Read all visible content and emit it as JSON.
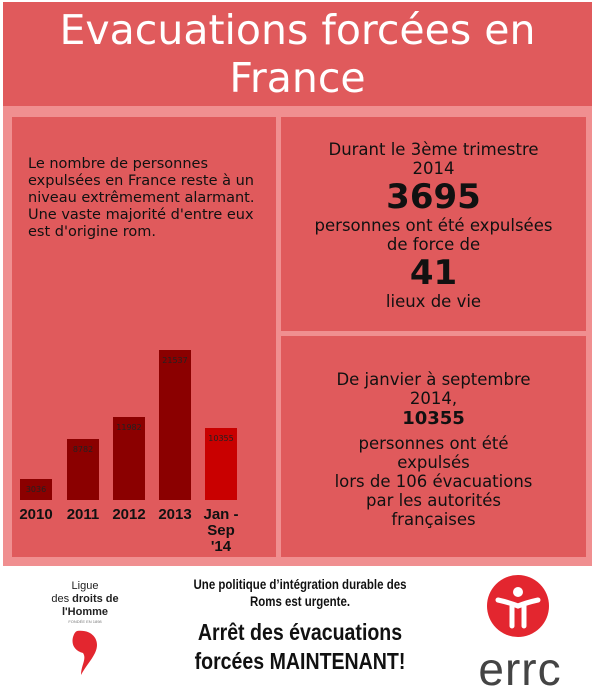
{
  "title": "Evacuations forcées en France",
  "intro_text": "Le nombre de personnes expulsées en France reste à un niveau extrêmement alarmant. Une vaste majorité d'entre eux est d'origine rom.",
  "quarter_box": {
    "line1": "Durant le 3ème trimestre",
    "line2": "2014",
    "number": "3695",
    "line3": "personnes ont été expulsées",
    "line4": "de force de",
    "number2": "41",
    "line5": "lieux de vie"
  },
  "period_box": {
    "line1": "De janvier à septembre",
    "line2": "2014,",
    "number": "10355",
    "line3": "personnes ont été",
    "line4": "expulsés",
    "line5": "lors de 106 évacuations",
    "line6": "par les autorités",
    "line7": "françaises"
  },
  "chart_data": {
    "type": "bar",
    "categories": [
      "2010",
      "2011",
      "2012",
      "2013",
      "Jan - Sep '14"
    ],
    "values": [
      3036,
      8782,
      11982,
      21537,
      10355
    ],
    "labels": [
      "3036",
      "8782",
      "11982",
      "21537",
      "10355"
    ],
    "ylim": [
      0,
      21537
    ],
    "colors": [
      "#8b0000",
      "#8b0000",
      "#8b0000",
      "#8b0000",
      "#c90000"
    ]
  },
  "footer": {
    "ldh_line1": "Ligue",
    "ldh_line2a": "des ",
    "ldh_line2b": "droits de",
    "ldh_line3": "l'Homme",
    "ldh_tiny": "FONDÉE EN 1898",
    "slogan1": "Une politique d’intégration durable des Roms est urgente.",
    "slogan2": "Arrêt des évacuations forcées MAINTENANT!",
    "errc": "errc",
    "accent": "#e3262f"
  }
}
